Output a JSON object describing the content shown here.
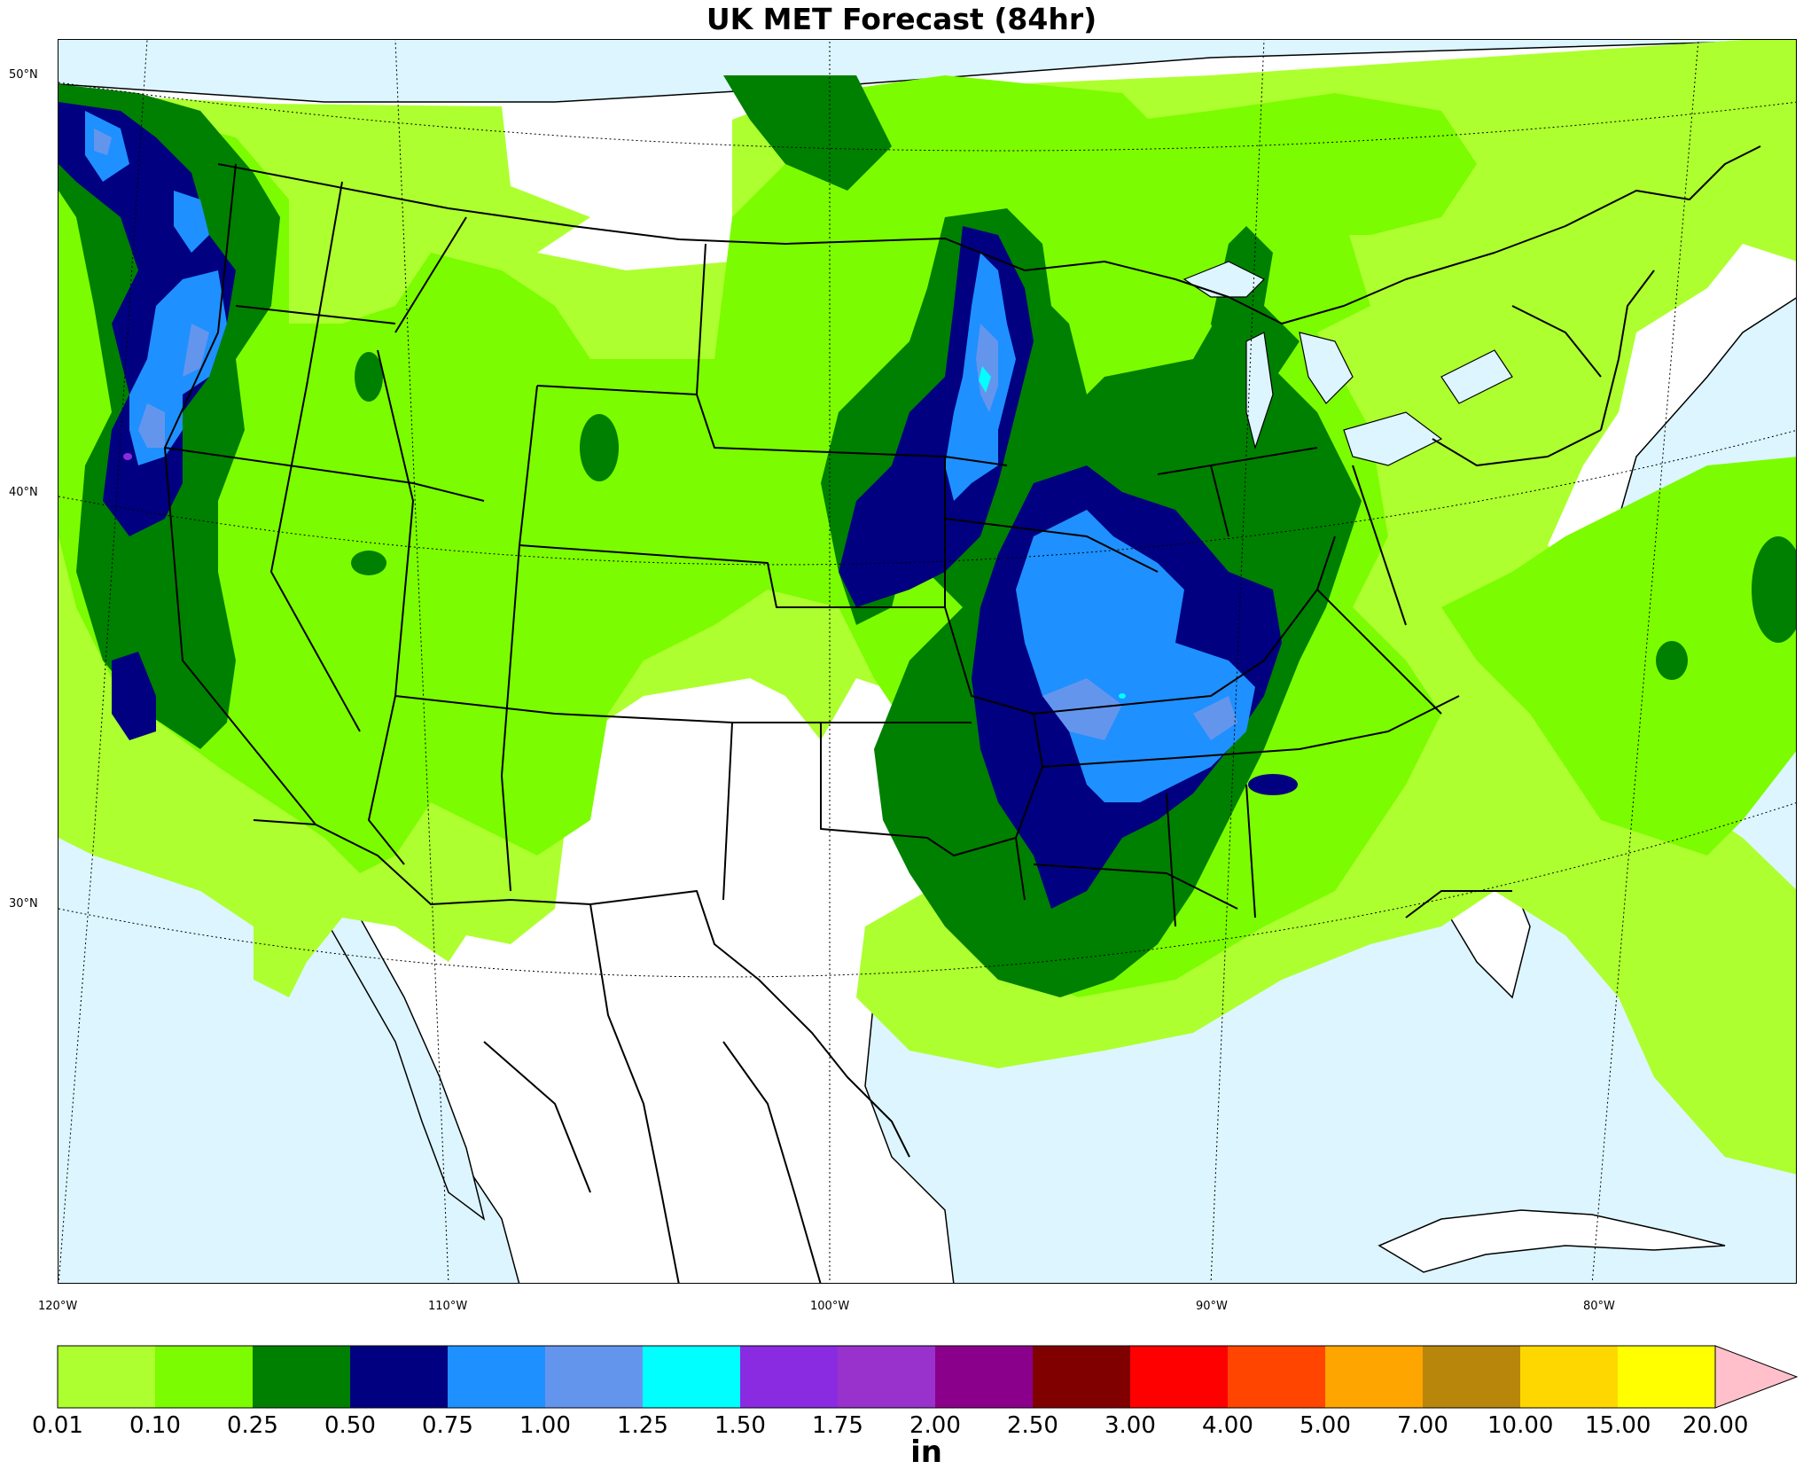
{
  "title": "UK MET Forecast (84hr)",
  "latitude_labels": [
    "50°N",
    "40°N",
    "30°N"
  ],
  "longitude_labels": [
    "120°W",
    "110°W",
    "100°W",
    "90°W",
    "80°W"
  ],
  "colorbar": {
    "unit": "in",
    "levels": [
      "0.01",
      "0.10",
      "0.25",
      "0.50",
      "0.75",
      "1.00",
      "1.25",
      "1.50",
      "1.75",
      "2.00",
      "2.50",
      "3.00",
      "4.00",
      "5.00",
      "7.00",
      "10.00",
      "15.00",
      "20.00"
    ],
    "colors": [
      "#adff2f",
      "#7cfc00",
      "#008000",
      "#000080",
      "#1e90ff",
      "#6495ed",
      "#00ffff",
      "#8a2be2",
      "#9932cc",
      "#8b008b",
      "#800000",
      "#ff0000",
      "#ff4500",
      "#ffa500",
      "#b8860b",
      "#ffd700",
      "#ffff00"
    ],
    "extend_color": "#ffc0cb"
  },
  "map_colors": {
    "ocean": "#dcf5ff",
    "land": "#ffffff"
  }
}
